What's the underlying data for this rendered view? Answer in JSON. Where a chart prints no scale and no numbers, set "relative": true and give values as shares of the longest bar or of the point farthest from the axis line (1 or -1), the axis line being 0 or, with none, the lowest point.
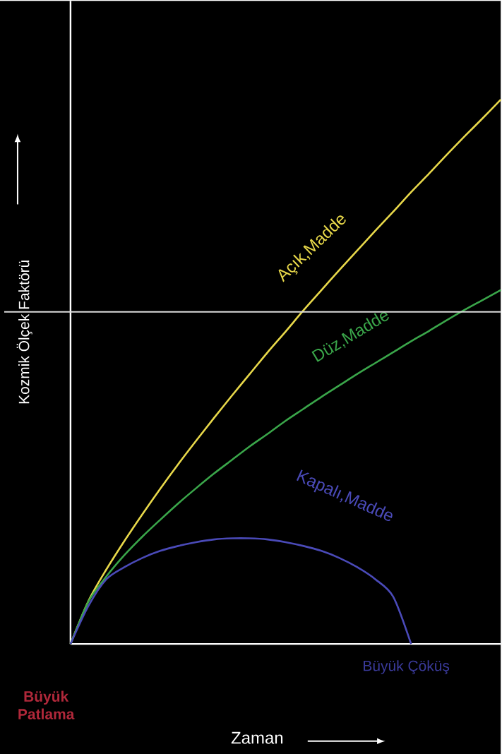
{
  "chart_data": {
    "type": "line",
    "relative": true,
    "ylabel": "Kozmik Ölçek Faktörü",
    "categories": [
      null,
      null,
      null,
      null,
      null,
      null,
      null,
      null,
      null,
      null,
      null,
      null,
      null,
      null,
      null,
      null,
      null,
      null,
      null,
      null,
      null,
      null,
      null,
      null,
      null
    ],
    "series": [
      {
        "name": "Açık,Madde",
        "color": "#e8d84a",
        "values": [
          0,
          0.079,
          0.137,
          0.189,
          0.238,
          0.285,
          0.33,
          0.373,
          0.415,
          0.456,
          0.496,
          0.536,
          0.574,
          0.613,
          0.65,
          0.687,
          0.723,
          0.759,
          0.794,
          0.83,
          0.864,
          0.899,
          0.933,
          0.966,
          1
        ]
      },
      {
        "name": "Düz,Madde",
        "color": "#3aa64a",
        "values": [
          0,
          0.078,
          0.124,
          0.163,
          0.197,
          0.228,
          0.258,
          0.286,
          0.313,
          0.338,
          0.363,
          0.386,
          0.41,
          0.432,
          0.454,
          0.475,
          0.496,
          0.516,
          0.536,
          0.556,
          0.575,
          0.595,
          0.614,
          0.632,
          0.65
        ]
      },
      {
        "name": "Kapalı,Madde",
        "color": "#4a4ab8",
        "values": [
          0,
          0.07,
          0.119,
          0.141,
          0.158,
          0.171,
          0.18,
          0.187,
          0.192,
          0.194,
          0.194,
          0.192,
          0.187,
          0.18,
          0.171,
          0.158,
          0.141,
          0.119,
          0.087,
          0,
          null,
          null,
          null,
          null,
          null
        ]
      }
    ],
    "ref_lines": [
      {
        "axis": "y",
        "value": 0.61,
        "color": "#dddddd"
      }
    ],
    "annotations": [
      "Büyük Patlama",
      "Büyük Çöküş",
      "Zaman"
    ],
    "marker": "none",
    "line_style": "solid"
  }
}
